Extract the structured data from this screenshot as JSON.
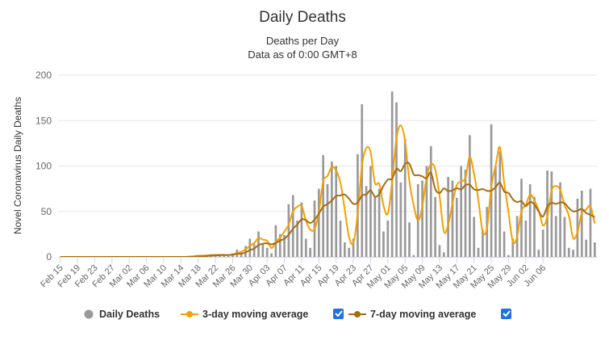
{
  "chart_data": {
    "type": "bar",
    "title": "Daily Deaths",
    "subtitle_line1": "Deaths per Day",
    "subtitle_line2": "Data as of 0:00 GMT+8",
    "ylabel": "Novel Coronavirus Daily Deaths",
    "xlabel": "",
    "ylim": [
      0,
      200
    ],
    "yticks": [
      0,
      50,
      100,
      150,
      200
    ],
    "grid": true,
    "x_start": "2020-02-15",
    "x_end": "2020-06-07",
    "x_tick_labels": [
      "Feb 15",
      "Feb 19",
      "Feb 23",
      "Feb 27",
      "Mar 02",
      "Mar 06",
      "Mar 10",
      "Mar 14",
      "Mar 18",
      "Mar 22",
      "Mar 26",
      "Mar 30",
      "Apr 03",
      "Apr 07",
      "Apr 11",
      "Apr 15",
      "Apr 19",
      "Apr 23",
      "Apr 27",
      "May 01",
      "May 05",
      "May 09",
      "May 13",
      "May 17",
      "May 21",
      "May 25",
      "May 29",
      "Jun 02",
      "Jun 06"
    ],
    "colors": {
      "bars": "#999999",
      "ma3": "#f5a000",
      "ma7": "#a86c12",
      "grid": "#e6e6e6",
      "axis": "#ccd6eb",
      "text": "#333333",
      "tick": "#666666",
      "checkbox": "#1a73e8"
    },
    "series": [
      {
        "name": "Daily Deaths",
        "type": "bar",
        "values": [
          0,
          0,
          0,
          0,
          0,
          0,
          0,
          0,
          0,
          0,
          0,
          0,
          0,
          0,
          0,
          0,
          0,
          0,
          0,
          0,
          0,
          0,
          0,
          0,
          0,
          0,
          0,
          0,
          0,
          0,
          1,
          1,
          2,
          1,
          2,
          3,
          2,
          2,
          3,
          1,
          4,
          8,
          5,
          12,
          20,
          14,
          28,
          15,
          10,
          4,
          35,
          25,
          24,
          58,
          68,
          40,
          60,
          20,
          10,
          62,
          75,
          112,
          80,
          105,
          100,
          40,
          16,
          10,
          20,
          113,
          168,
          78,
          100,
          66,
          75,
          28,
          40,
          182,
          170,
          82,
          130,
          38,
          2,
          80,
          84,
          100,
          122,
          66,
          13,
          5,
          88,
          84,
          65,
          100,
          96,
          134,
          44,
          10,
          30,
          55,
          146,
          100,
          116,
          28,
          2,
          20,
          45,
          86,
          40,
          80,
          66,
          8,
          30,
          95,
          94,
          45,
          82,
          44,
          10,
          8,
          64,
          73,
          19,
          75,
          16
        ]
      },
      {
        "name": "3-day moving average",
        "type": "line",
        "values": [
          0,
          0,
          0,
          0,
          0,
          0,
          0,
          0,
          0,
          0,
          0,
          0,
          0,
          0,
          0,
          0,
          0,
          0,
          0,
          0,
          0,
          0,
          0,
          0,
          0,
          0,
          0,
          0,
          0,
          0,
          0.3,
          0.7,
          1.3,
          1.3,
          1.7,
          2,
          2.3,
          2.3,
          2.3,
          2,
          2.7,
          4.3,
          5.7,
          8.3,
          12.3,
          15.3,
          20.7,
          19,
          17.7,
          9.7,
          16.3,
          21.3,
          28,
          35.7,
          50,
          55.3,
          56,
          40,
          30,
          30.7,
          49,
          83,
          89,
          99,
          95,
          81.7,
          52,
          22,
          15.3,
          47.7,
          100.3,
          119.7,
          115.3,
          81.3,
          80.3,
          56.3,
          47.7,
          83.3,
          130.7,
          144.7,
          127.3,
          83.3,
          56.7,
          40,
          55.3,
          88,
          102,
          96,
          67,
          28,
          35.3,
          59,
          79,
          83,
          87,
          110,
          91.3,
          62.7,
          28,
          31.7,
          77,
          100.3,
          120.7,
          81.3,
          48.7,
          16.7,
          22.3,
          50.3,
          57,
          68.7,
          62,
          51.3,
          34.7,
          44.3,
          73,
          78,
          73.7,
          57,
          45.3,
          20.7,
          27.3,
          48.3,
          52,
          55.7,
          36.7
        ]
      },
      {
        "name": "7-day moving average",
        "type": "line",
        "values": [
          0,
          0,
          0,
          0,
          0,
          0,
          0,
          0,
          0,
          0,
          0,
          0,
          0,
          0,
          0,
          0,
          0,
          0,
          0,
          0,
          0,
          0,
          0,
          0,
          0,
          0,
          0,
          0,
          0,
          0,
          0.1,
          0.3,
          0.6,
          0.7,
          1,
          1.4,
          1.7,
          1.9,
          2.1,
          2,
          2.4,
          3.3,
          3.6,
          4.9,
          7.6,
          9.1,
          13,
          14.6,
          14.9,
          13.9,
          15.4,
          17.9,
          20.1,
          24.4,
          31,
          35.7,
          41.4,
          40.4,
          37.3,
          40.9,
          47.6,
          55.3,
          58.1,
          62,
          67,
          67.7,
          68.6,
          64,
          58.4,
          59.7,
          67.7,
          68.6,
          73.3,
          66.3,
          69,
          78.3,
          85,
          86.1,
          97,
          94.3,
          102.4,
          102.6,
          90.6,
          90,
          88.7,
          86.4,
          92.9,
          74.6,
          70.3,
          75.4,
          72.4,
          73.3,
          75.6,
          74.3,
          79,
          79.4,
          74.4,
          73.6,
          74.6,
          72.7,
          72.9,
          76.6,
          81.7,
          71.9,
          70.3,
          63.4,
          60.4,
          61.3,
          55.9,
          60.6,
          57.6,
          49.9,
          44.4,
          55.4,
          59.4,
          58.3,
          59.9,
          59.1,
          53.7,
          50.1,
          50.9,
          52.7,
          48.3,
          46.3,
          43.6
        ]
      }
    ],
    "legend": [
      {
        "name": "Daily Deaths",
        "marker": "circle",
        "checkbox": false
      },
      {
        "name": "3-day moving average",
        "marker": "line",
        "checkbox": true,
        "checked": true
      },
      {
        "name": "7-day moving average",
        "marker": "line",
        "checkbox": true,
        "checked": true
      }
    ],
    "legend_placement": "bottom"
  }
}
